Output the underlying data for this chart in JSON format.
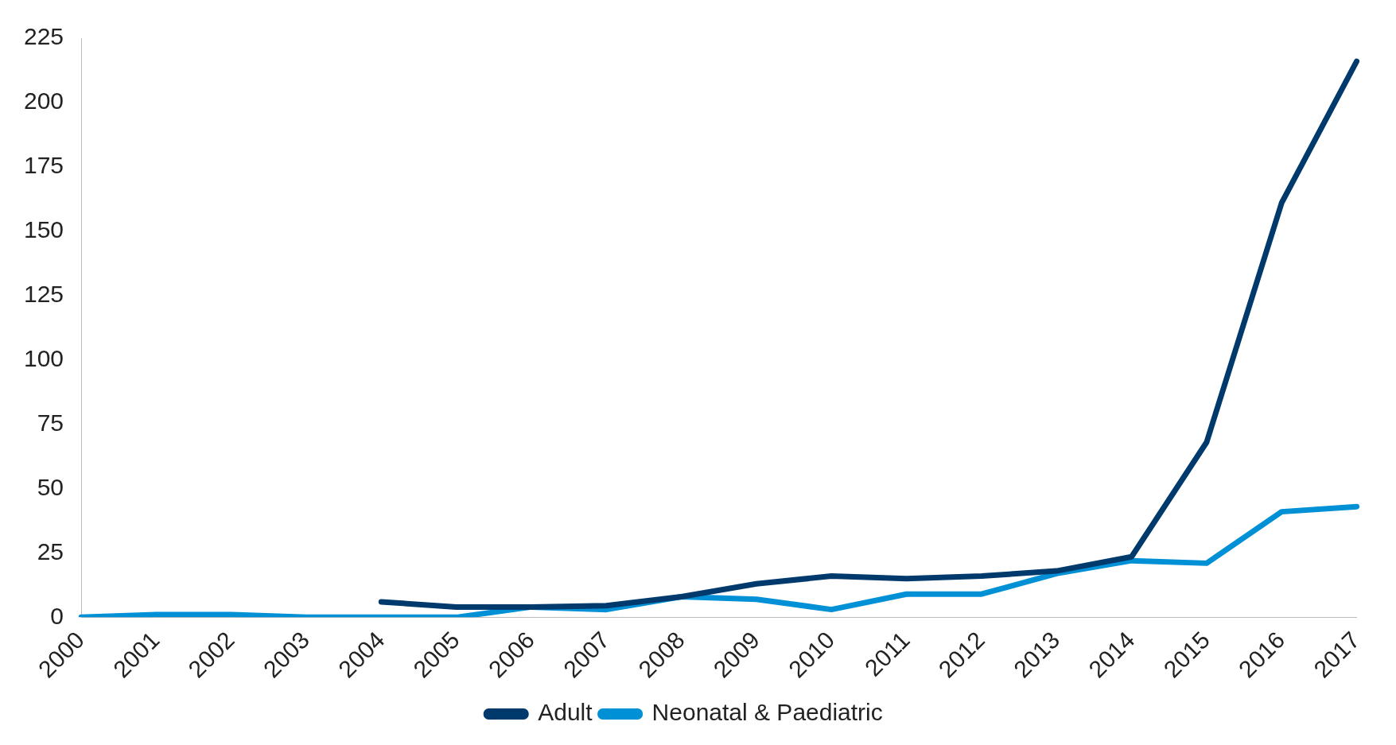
{
  "chart_data": {
    "type": "line",
    "categories": [
      "2000",
      "2001",
      "2002",
      "2003",
      "2004",
      "2005",
      "2006",
      "2007",
      "2008",
      "2009",
      "2010",
      "2011",
      "2012",
      "2013",
      "2014",
      "2015",
      "2016",
      "2017"
    ],
    "series": [
      {
        "name": "Adult",
        "color": "#003a6c",
        "values": [
          null,
          null,
          null,
          null,
          6,
          4,
          4,
          4.5,
          8,
          13,
          16,
          15,
          16,
          18,
          23.5,
          68,
          161,
          216
        ]
      },
      {
        "name": "Neonatal & Paediatric",
        "color": "#0090d6",
        "values": [
          0,
          1,
          1,
          0,
          0,
          0,
          4,
          3,
          8,
          7,
          3,
          9,
          9,
          17,
          22,
          21,
          41,
          43
        ]
      }
    ],
    "ylim": [
      0,
      225
    ],
    "yticks": [
      0,
      25,
      50,
      75,
      100,
      125,
      150,
      175,
      200,
      225
    ],
    "grid": false,
    "legend": "bottom",
    "marker": "none",
    "line_style": "solid"
  }
}
